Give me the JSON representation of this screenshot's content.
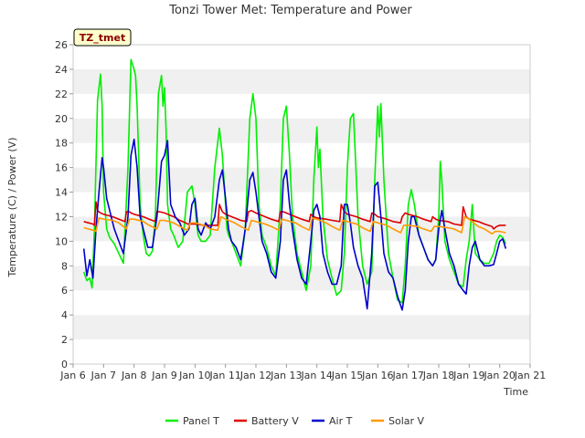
{
  "chart_data": {
    "type": "line",
    "title": "Tonzi Tower Met: Temperature and Power",
    "xlabel": "Time",
    "ylabel": "Temperature (C) / Power (V)",
    "tag": "TZ_tmet",
    "xlim": [
      6,
      21
    ],
    "ylim": [
      0,
      26
    ],
    "x_ticks": [
      6,
      7,
      8,
      9,
      10,
      11,
      12,
      13,
      14,
      15,
      16,
      17,
      18,
      19,
      20,
      21
    ],
    "x_tick_labels": [
      "Jan 6",
      "Jan 7",
      "Jan 8",
      "Jan 9",
      "Jan 10",
      "Jan 11",
      "Jan 12",
      "Jan 13",
      "Jan 14",
      "Jan 15",
      "Jan 16",
      "Jan 17",
      "Jan 18",
      "Jan 19",
      "Jan 20",
      "Jan 21"
    ],
    "y_ticks": [
      0,
      2,
      4,
      6,
      8,
      10,
      12,
      14,
      16,
      18,
      20,
      22,
      24,
      26
    ],
    "grid": "horizontal bands",
    "legend": "bottom",
    "series": [
      {
        "name": "Panel T",
        "color": "#00ee00",
        "x": [
          6.35,
          6.45,
          6.55,
          6.62,
          6.7,
          6.8,
          6.9,
          6.95,
          7.0,
          7.1,
          7.2,
          7.35,
          7.5,
          7.65,
          7.8,
          7.9,
          8.0,
          8.05,
          8.1,
          8.2,
          8.3,
          8.4,
          8.5,
          8.6,
          8.7,
          8.8,
          8.9,
          8.95,
          9.0,
          9.05,
          9.1,
          9.2,
          9.3,
          9.45,
          9.6,
          9.75,
          9.9,
          10.0,
          10.05,
          10.1,
          10.2,
          10.35,
          10.5,
          10.65,
          10.8,
          10.9,
          11.0,
          11.05,
          11.1,
          11.2,
          11.35,
          11.5,
          11.65,
          11.8,
          11.9,
          12.0,
          12.1,
          12.2,
          12.35,
          12.5,
          12.65,
          12.8,
          12.9,
          13.0,
          13.1,
          13.2,
          13.35,
          13.5,
          13.65,
          13.8,
          13.9,
          14.0,
          14.05,
          14.1,
          14.2,
          14.35,
          14.5,
          14.65,
          14.8,
          14.9,
          15.0,
          15.1,
          15.2,
          15.35,
          15.5,
          15.65,
          15.8,
          15.9,
          16.0,
          16.05,
          16.1,
          16.2,
          16.35,
          16.5,
          16.65,
          16.8,
          16.9,
          17.0,
          17.1,
          17.2,
          17.35,
          17.5,
          17.65,
          17.8,
          17.9,
          18.0,
          18.05,
          18.1,
          18.2,
          18.35,
          18.5,
          18.65,
          18.8,
          18.9,
          19.0,
          19.1,
          19.2,
          19.35,
          19.5,
          19.65,
          19.8,
          19.9,
          20.0,
          20.1,
          20.2
        ],
        "y": [
          7.5,
          6.8,
          7.0,
          6.2,
          11.0,
          21.5,
          23.6,
          21.0,
          14.0,
          11.0,
          10.3,
          9.8,
          9.0,
          8.2,
          16.0,
          24.8,
          24.0,
          23.5,
          21.0,
          13.0,
          10.5,
          9.0,
          8.8,
          9.2,
          12.0,
          22.0,
          23.5,
          21.0,
          22.5,
          19.0,
          13.0,
          11.0,
          10.5,
          9.5,
          10.0,
          14.0,
          14.5,
          13.0,
          11.5,
          10.5,
          10.0,
          10.0,
          10.5,
          16.0,
          19.2,
          17.0,
          13.0,
          11.0,
          10.5,
          10.0,
          9.0,
          8.0,
          11.0,
          20.0,
          22.0,
          20.0,
          13.0,
          10.5,
          9.5,
          8.0,
          7.2,
          13.0,
          20.0,
          21.0,
          17.0,
          12.0,
          9.0,
          7.5,
          6.0,
          8.0,
          15.0,
          19.3,
          16.0,
          17.5,
          12.0,
          8.5,
          7.0,
          5.6,
          6.0,
          9.0,
          16.0,
          20.0,
          20.4,
          12.0,
          8.0,
          6.5,
          7.5,
          15.0,
          21.0,
          18.5,
          21.2,
          15.0,
          9.0,
          7.0,
          5.2,
          5.0,
          8.0,
          13.0,
          14.2,
          13.0,
          10.5,
          9.5,
          8.5,
          8.0,
          8.5,
          12.0,
          16.5,
          15.0,
          10.0,
          8.5,
          7.5,
          6.5,
          6.3,
          8.5,
          10.0,
          13.0,
          9.0,
          8.5,
          8.2,
          8.2,
          9.0,
          10.0,
          10.5,
          10.3,
          9.8
        ]
      },
      {
        "name": "Battery V",
        "color": "#dd0000",
        "x": [
          6.35,
          6.5,
          6.65,
          6.7,
          6.75,
          6.8,
          6.9,
          7.0,
          7.3,
          7.5,
          7.7,
          7.75,
          7.85,
          7.9,
          8.0,
          8.3,
          8.5,
          8.7,
          8.75,
          8.85,
          9.0,
          9.3,
          9.5,
          9.7,
          9.75,
          9.85,
          10.0,
          10.3,
          10.5,
          10.75,
          10.8,
          10.9,
          11.0,
          11.3,
          11.5,
          11.7,
          11.75,
          11.85,
          12.0,
          12.3,
          12.5,
          12.75,
          12.8,
          12.9,
          13.0,
          13.3,
          13.5,
          13.75,
          13.8,
          13.9,
          14.0,
          14.3,
          14.5,
          14.75,
          14.8,
          14.9,
          15.0,
          15.3,
          15.5,
          15.75,
          15.8,
          15.9,
          16.0,
          16.3,
          16.5,
          16.75,
          16.8,
          16.9,
          17.0,
          17.3,
          17.5,
          17.75,
          17.8,
          17.9,
          18.0,
          18.3,
          18.5,
          18.75,
          18.8,
          18.9,
          19.0,
          19.3,
          19.5,
          19.75,
          19.8,
          19.9,
          20.0,
          20.2
        ],
        "y": [
          11.6,
          11.5,
          11.4,
          11.3,
          13.2,
          12.5,
          12.3,
          12.2,
          12.0,
          11.8,
          11.6,
          12.4,
          12.4,
          12.3,
          12.2,
          12.0,
          11.8,
          11.6,
          12.4,
          12.4,
          12.3,
          12.0,
          11.7,
          11.5,
          11.4,
          11.4,
          11.4,
          11.3,
          11.3,
          11.3,
          13.0,
          12.4,
          12.2,
          11.9,
          11.7,
          11.6,
          12.4,
          12.5,
          12.3,
          12.0,
          11.8,
          11.6,
          12.4,
          12.4,
          12.3,
          12.0,
          11.8,
          11.6,
          12.2,
          12.0,
          11.9,
          11.8,
          11.7,
          11.6,
          13.0,
          12.4,
          12.2,
          12.0,
          11.8,
          11.6,
          12.3,
          12.2,
          12.0,
          11.8,
          11.6,
          11.5,
          12.0,
          12.3,
          12.2,
          12.0,
          11.8,
          11.6,
          12.0,
          11.8,
          11.7,
          11.6,
          11.4,
          11.3,
          12.8,
          12.0,
          11.8,
          11.6,
          11.4,
          11.2,
          11.0,
          11.2,
          11.3,
          11.3
        ]
      },
      {
        "name": "Air T",
        "color": "#0000cc",
        "x": [
          6.35,
          6.45,
          6.55,
          6.65,
          6.75,
          6.85,
          6.95,
          7.0,
          7.1,
          7.2,
          7.35,
          7.5,
          7.65,
          7.8,
          7.9,
          8.0,
          8.1,
          8.2,
          8.3,
          8.45,
          8.6,
          8.75,
          8.9,
          9.0,
          9.1,
          9.2,
          9.35,
          9.5,
          9.65,
          9.8,
          9.9,
          10.0,
          10.1,
          10.2,
          10.35,
          10.5,
          10.65,
          10.8,
          10.9,
          11.0,
          11.1,
          11.2,
          11.35,
          11.5,
          11.65,
          11.8,
          11.9,
          12.0,
          12.1,
          12.2,
          12.35,
          12.5,
          12.65,
          12.8,
          12.9,
          13.0,
          13.1,
          13.2,
          13.35,
          13.5,
          13.65,
          13.8,
          13.9,
          14.0,
          14.1,
          14.2,
          14.35,
          14.5,
          14.65,
          14.8,
          14.9,
          15.0,
          15.1,
          15.2,
          15.35,
          15.5,
          15.65,
          15.8,
          15.9,
          16.0,
          16.1,
          16.2,
          16.35,
          16.5,
          16.65,
          16.8,
          16.9,
          17.0,
          17.1,
          17.2,
          17.35,
          17.5,
          17.65,
          17.8,
          17.9,
          18.0,
          18.1,
          18.2,
          18.35,
          18.5,
          18.65,
          18.8,
          18.9,
          19.0,
          19.1,
          19.2,
          19.35,
          19.5,
          19.65,
          19.8,
          19.9,
          20.0,
          20.1,
          20.2
        ],
        "y": [
          9.4,
          7.2,
          8.5,
          7.0,
          11.0,
          14.0,
          16.8,
          16.0,
          13.5,
          12.5,
          11.0,
          10.0,
          9.0,
          12.0,
          17.0,
          18.3,
          16.0,
          12.0,
          11.0,
          9.5,
          9.5,
          12.0,
          16.5,
          17.0,
          18.2,
          13.0,
          12.0,
          11.5,
          10.5,
          11.0,
          13.0,
          13.5,
          11.0,
          10.5,
          11.5,
          11.0,
          12.0,
          15.0,
          15.8,
          13.5,
          11.0,
          10.0,
          9.5,
          8.5,
          11.0,
          15.0,
          15.6,
          14.0,
          12.0,
          10.0,
          9.0,
          7.5,
          7.0,
          10.0,
          15.0,
          15.8,
          13.0,
          11.0,
          8.5,
          7.0,
          6.5,
          10.0,
          12.5,
          13.0,
          12.0,
          9.0,
          7.5,
          6.5,
          6.5,
          8.0,
          13.0,
          13.0,
          11.5,
          9.5,
          8.0,
          7.0,
          4.5,
          9.0,
          14.5,
          14.8,
          12.0,
          9.0,
          7.5,
          7.0,
          5.5,
          4.4,
          6.0,
          10.0,
          12.0,
          12.0,
          10.5,
          9.5,
          8.5,
          8.0,
          8.5,
          11.0,
          12.5,
          11.0,
          9.0,
          8.0,
          6.5,
          6.0,
          5.7,
          8.0,
          9.5,
          10.0,
          8.5,
          8.0,
          8.0,
          8.1,
          9.0,
          10.0,
          10.2,
          9.4
        ]
      },
      {
        "name": "Solar V",
        "color": "#ff9900",
        "x": [
          6.35,
          6.5,
          6.65,
          6.75,
          6.85,
          7.0,
          7.3,
          7.5,
          7.75,
          7.85,
          8.0,
          8.3,
          8.5,
          8.75,
          8.85,
          9.0,
          9.3,
          9.5,
          9.75,
          9.85,
          10.0,
          10.3,
          10.5,
          10.75,
          10.85,
          11.0,
          11.3,
          11.5,
          11.75,
          11.85,
          12.0,
          12.3,
          12.5,
          12.75,
          12.85,
          13.0,
          13.3,
          13.5,
          13.75,
          13.85,
          14.0,
          14.3,
          14.5,
          14.75,
          14.85,
          15.0,
          15.3,
          15.5,
          15.75,
          15.85,
          16.0,
          16.3,
          16.5,
          16.75,
          16.85,
          17.0,
          17.3,
          17.5,
          17.75,
          17.85,
          18.0,
          18.3,
          18.5,
          18.75,
          18.85,
          19.0,
          19.3,
          19.5,
          19.75,
          19.85,
          20.0,
          20.2
        ],
        "y": [
          11.1,
          11.0,
          10.9,
          10.8,
          11.9,
          11.8,
          11.7,
          11.5,
          11.0,
          11.8,
          11.8,
          11.6,
          11.3,
          11.0,
          11.7,
          11.7,
          11.5,
          11.2,
          10.9,
          11.5,
          11.5,
          11.3,
          11.0,
          10.9,
          12.0,
          11.8,
          11.5,
          11.2,
          10.9,
          11.7,
          11.6,
          11.4,
          11.2,
          10.9,
          11.8,
          11.7,
          11.5,
          11.2,
          10.9,
          11.9,
          11.8,
          11.5,
          11.2,
          10.9,
          11.7,
          11.6,
          11.4,
          11.1,
          10.8,
          11.6,
          11.5,
          11.3,
          11.0,
          10.7,
          11.3,
          11.3,
          11.2,
          11.0,
          10.8,
          11.2,
          11.2,
          11.1,
          11.0,
          10.7,
          12.0,
          11.8,
          11.2,
          11.0,
          10.6,
          10.8,
          10.8,
          10.7
        ]
      }
    ]
  }
}
